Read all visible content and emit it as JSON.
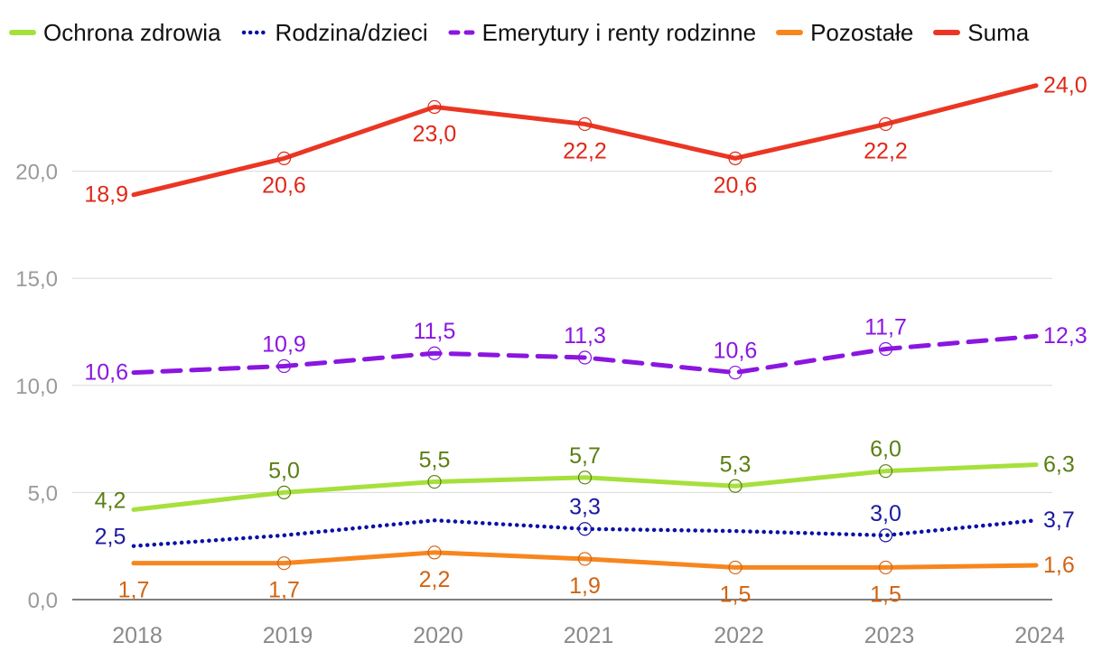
{
  "chart_data": {
    "type": "line",
    "title": "",
    "xlabel": "",
    "ylabel": "",
    "categories": [
      "2018",
      "2019",
      "2020",
      "2021",
      "2022",
      "2023",
      "2024"
    ],
    "ylim": [
      0,
      25
    ],
    "yticks": [
      0,
      5,
      10,
      15,
      20
    ],
    "ytick_labels": [
      "0,0",
      "5,0",
      "10,0",
      "15,0",
      "20,0"
    ],
    "grid": true,
    "legend_position": "top",
    "series": [
      {
        "name": "Ochrona zdrowia",
        "color": "#a6e03c",
        "label_color": "#5a7f12",
        "style": "solid",
        "values": [
          4.2,
          5.0,
          5.5,
          5.7,
          5.3,
          6.0,
          6.3
        ],
        "labels": [
          "4,2",
          "5,0",
          "5,5",
          "5,7",
          "5,3",
          "6,0",
          "6,3"
        ],
        "label_pos": [
          "above",
          "above",
          "above",
          "above",
          "above",
          "above",
          "right"
        ],
        "markers": [
          false,
          true,
          true,
          true,
          true,
          true,
          false
        ]
      },
      {
        "name": "Rodzina/dzieci",
        "color": "#0a10a8",
        "label_color": "#1a1aa0",
        "style": "dotted",
        "values": [
          2.5,
          3.0,
          3.7,
          3.3,
          3.2,
          3.0,
          3.7
        ],
        "labels": [
          "2,5",
          "",
          "",
          "3,3",
          "",
          "3,0",
          "3,7"
        ],
        "label_pos": [
          "above",
          "above",
          "above",
          "above",
          "above",
          "above",
          "right"
        ],
        "markers": [
          false,
          false,
          false,
          true,
          false,
          true,
          false
        ]
      },
      {
        "name": "Emerytury i renty rodzinne",
        "color": "#8a16e0",
        "label_color": "#8a16e0",
        "style": "dashed",
        "values": [
          10.6,
          10.9,
          11.5,
          11.3,
          10.6,
          11.7,
          12.3
        ],
        "labels": [
          "10,6",
          "10,9",
          "11,5",
          "11,3",
          "10,6",
          "11,7",
          "12,3"
        ],
        "label_pos": [
          "left",
          "above",
          "above",
          "above",
          "above",
          "above",
          "right"
        ],
        "markers": [
          false,
          true,
          true,
          true,
          true,
          true,
          false
        ]
      },
      {
        "name": "Pozostałe",
        "color": "#f7861e",
        "label_color": "#d06412",
        "style": "solid",
        "values": [
          1.7,
          1.7,
          2.2,
          1.9,
          1.5,
          1.5,
          1.6
        ],
        "labels": [
          "1,7",
          "1,7",
          "2,2",
          "1,9",
          "1,5",
          "1,5",
          "1,6"
        ],
        "label_pos": [
          "below",
          "below",
          "below",
          "below",
          "below",
          "below",
          "right"
        ],
        "markers": [
          false,
          true,
          true,
          true,
          true,
          true,
          false
        ]
      },
      {
        "name": "Suma",
        "color": "#ea3623",
        "label_color": "#e02818",
        "style": "solid",
        "values": [
          18.9,
          20.6,
          23.0,
          22.2,
          20.6,
          22.2,
          24.0
        ],
        "labels": [
          "18,9",
          "20,6",
          "23,0",
          "22,2",
          "20,6",
          "22,2",
          "24,0"
        ],
        "label_pos": [
          "left",
          "below",
          "below",
          "below",
          "below",
          "below",
          "right"
        ],
        "markers": [
          false,
          true,
          true,
          true,
          true,
          true,
          false
        ]
      }
    ]
  }
}
